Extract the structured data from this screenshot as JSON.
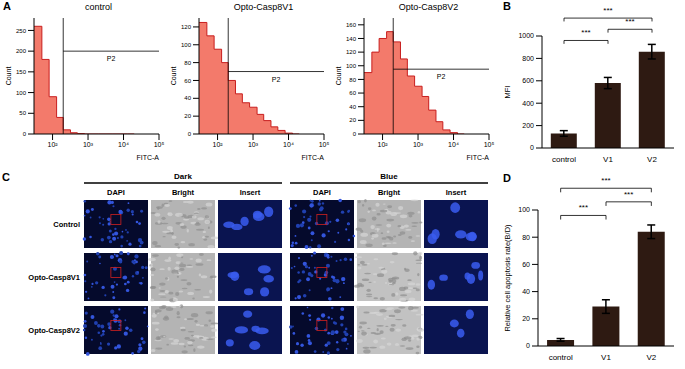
{
  "chart_data": [
    {
      "type": "histogram",
      "panel_label": "A",
      "title": "control",
      "x_label": "FITC-A",
      "y_label": "Count",
      "log": "x",
      "bins": [
        30,
        50,
        80,
        130,
        200,
        320,
        500,
        800,
        1300,
        2000,
        3200,
        5000,
        8000,
        13000,
        20000
      ],
      "counts": [
        260,
        180,
        90,
        40,
        10,
        3,
        1,
        0,
        0,
        0,
        0,
        0,
        0,
        0
      ],
      "color": "#f26b5b",
      "xlim": [
        30,
        100000
      ],
      "xticks": [
        {
          "value": 100,
          "label": "10²"
        },
        {
          "value": 1000,
          "label": "10³"
        },
        {
          "value": 10000,
          "label": "10⁴"
        },
        {
          "value": 100000,
          "label": "10⁵"
        }
      ],
      "ylim": [
        0,
        280
      ],
      "yticks": [
        0,
        50,
        100,
        150,
        200,
        250
      ],
      "gate": {
        "x": 200,
        "y": 200,
        "label": "P2"
      }
    },
    {
      "type": "histogram",
      "title": "Opto-Casp8V1",
      "x_label": "FITC-A",
      "y_label": "Count",
      "log": "x",
      "bins": [
        30,
        50,
        80,
        130,
        200,
        320,
        500,
        800,
        1300,
        2000,
        3200,
        5000,
        8000,
        13000,
        20000
      ],
      "counts": [
        125,
        110,
        95,
        80,
        60,
        45,
        35,
        30,
        22,
        15,
        8,
        4,
        1,
        0
      ],
      "color": "#f26b5b",
      "xlim": [
        30,
        100000
      ],
      "xticks": [
        {
          "value": 100,
          "label": "10²"
        },
        {
          "value": 1000,
          "label": "10³"
        },
        {
          "value": 10000,
          "label": "10⁴"
        },
        {
          "value": 100000,
          "label": "10⁵"
        }
      ],
      "ylim": [
        0,
        130
      ],
      "yticks": [
        0,
        20,
        40,
        60,
        80,
        100,
        120
      ],
      "gate": {
        "x": 200,
        "y": 70,
        "label": "P2"
      }
    },
    {
      "type": "histogram",
      "title": "Opto-Casp8V2",
      "x_label": "FITC-A",
      "y_label": "Count",
      "log": "x",
      "bins": [
        30,
        50,
        80,
        130,
        200,
        320,
        500,
        800,
        1300,
        2000,
        3200,
        5000,
        8000,
        13000,
        20000
      ],
      "counts": [
        90,
        120,
        140,
        150,
        135,
        110,
        85,
        70,
        55,
        35,
        18,
        6,
        2,
        0
      ],
      "color": "#f26b5b",
      "xlim": [
        30,
        100000
      ],
      "xticks": [
        {
          "value": 100,
          "label": "10²"
        },
        {
          "value": 1000,
          "label": "10³"
        },
        {
          "value": 10000,
          "label": "10⁴"
        },
        {
          "value": 100000,
          "label": "10⁵"
        }
      ],
      "ylim": [
        0,
        170
      ],
      "yticks": [
        0,
        20,
        40,
        60,
        80,
        100,
        120,
        140,
        160
      ],
      "gate": {
        "x": 200,
        "y": 95,
        "label": "P2"
      }
    },
    {
      "type": "bar",
      "panel_label": "B",
      "y_label": "MFI",
      "categories": [
        "control",
        "V1",
        "V2"
      ],
      "values": [
        130,
        580,
        860
      ],
      "errors": [
        25,
        50,
        65
      ],
      "color": "#2e1a12",
      "ylim": [
        0,
        1000
      ],
      "yticks": [
        0,
        200,
        400,
        600,
        800,
        1000
      ],
      "significance": [
        {
          "pair": [
            "control",
            "V1"
          ],
          "label": "***"
        },
        {
          "pair": [
            "V1",
            "V2"
          ],
          "label": "***"
        },
        {
          "pair": [
            "control",
            "V2"
          ],
          "label": "***"
        }
      ]
    },
    {
      "type": "bar",
      "panel_label": "D",
      "y_label": "Relative cell apoptosis rate(B/D)",
      "categories": [
        "control",
        "V1",
        "V2"
      ],
      "values": [
        4.5,
        29,
        84
      ],
      "errors": [
        1,
        5,
        5
      ],
      "color": "#2e1a12",
      "ylim": [
        0,
        100
      ],
      "yticks": [
        0,
        20,
        40,
        60,
        80,
        100
      ],
      "significance": [
        {
          "pair": [
            "control",
            "V1"
          ],
          "label": "***"
        },
        {
          "pair": [
            "V1",
            "V2"
          ],
          "label": "***"
        },
        {
          "pair": [
            "control",
            "V2"
          ],
          "label": "***"
        }
      ]
    }
  ],
  "image_grid": {
    "panel_label": "C",
    "groups": [
      "Dark",
      "Blue"
    ],
    "columns": [
      "DAPI",
      "Bright",
      "Insert"
    ],
    "rows": [
      "Control",
      "Opto-Casp8V1",
      "Opto-Casp8V2"
    ]
  }
}
